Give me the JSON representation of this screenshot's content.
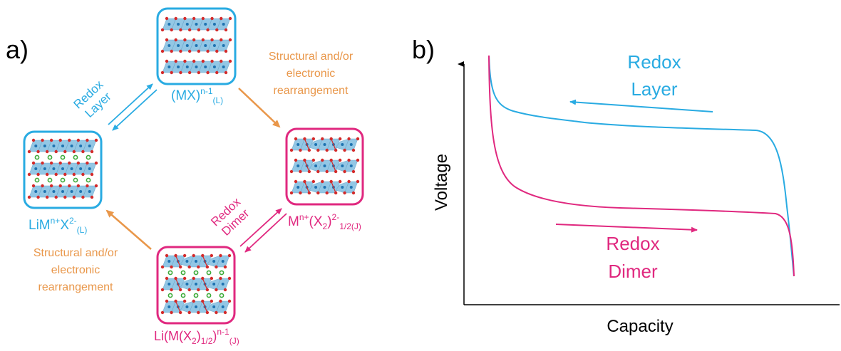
{
  "panel_a": {
    "label": "a)",
    "states": {
      "top": {
        "formula": {
          "base": "(MX)",
          "sup": "n-1",
          "sub": "(L)"
        }
      },
      "left": {
        "formula": {
          "base": "LiM",
          "sup1": "n+",
          "mid": "X",
          "sup2": "2-",
          "sub": "(L)"
        }
      },
      "right": {
        "formula": {
          "base": "M",
          "sup1": "n+",
          "mid1": "(X",
          "sub1": "2",
          "mid2": ")",
          "sup2": "2-",
          "sub2": "1/2(J)"
        }
      },
      "bottom": {
        "formula": {
          "base": "Li(M(X",
          "sub1": "2",
          "mid": ")",
          "sub2": "1/2",
          "mid2": ")",
          "sup": "n-1",
          "sub3": "(J)"
        }
      }
    },
    "arrow_labels": {
      "redox_layer": [
        "Redox",
        "Layer"
      ],
      "redox_dimer": [
        "Redox",
        "Dimer"
      ],
      "rearrangement_top": [
        "Structural and/or",
        "electronic",
        "rearrangement"
      ],
      "rearrangement_bottom": [
        "Structural and/or",
        "electronic",
        "rearrangement"
      ]
    }
  },
  "panel_b": {
    "label": "b)",
    "xlabel": "Capacity",
    "ylabel": "Voltage",
    "curve_labels": {
      "redox_layer": [
        "Redox",
        "Layer"
      ],
      "redox_dimer": [
        "Redox",
        "Dimer"
      ]
    }
  },
  "colors": {
    "layer": "#29abe2",
    "dimer": "#e0287f",
    "rearrangement": "#e9974a",
    "polyhedra": "#8ec5e4",
    "anion": "#d42a2a",
    "metal": "#1e73b0",
    "lithium": "#3dab3a",
    "axis": "#000000"
  }
}
